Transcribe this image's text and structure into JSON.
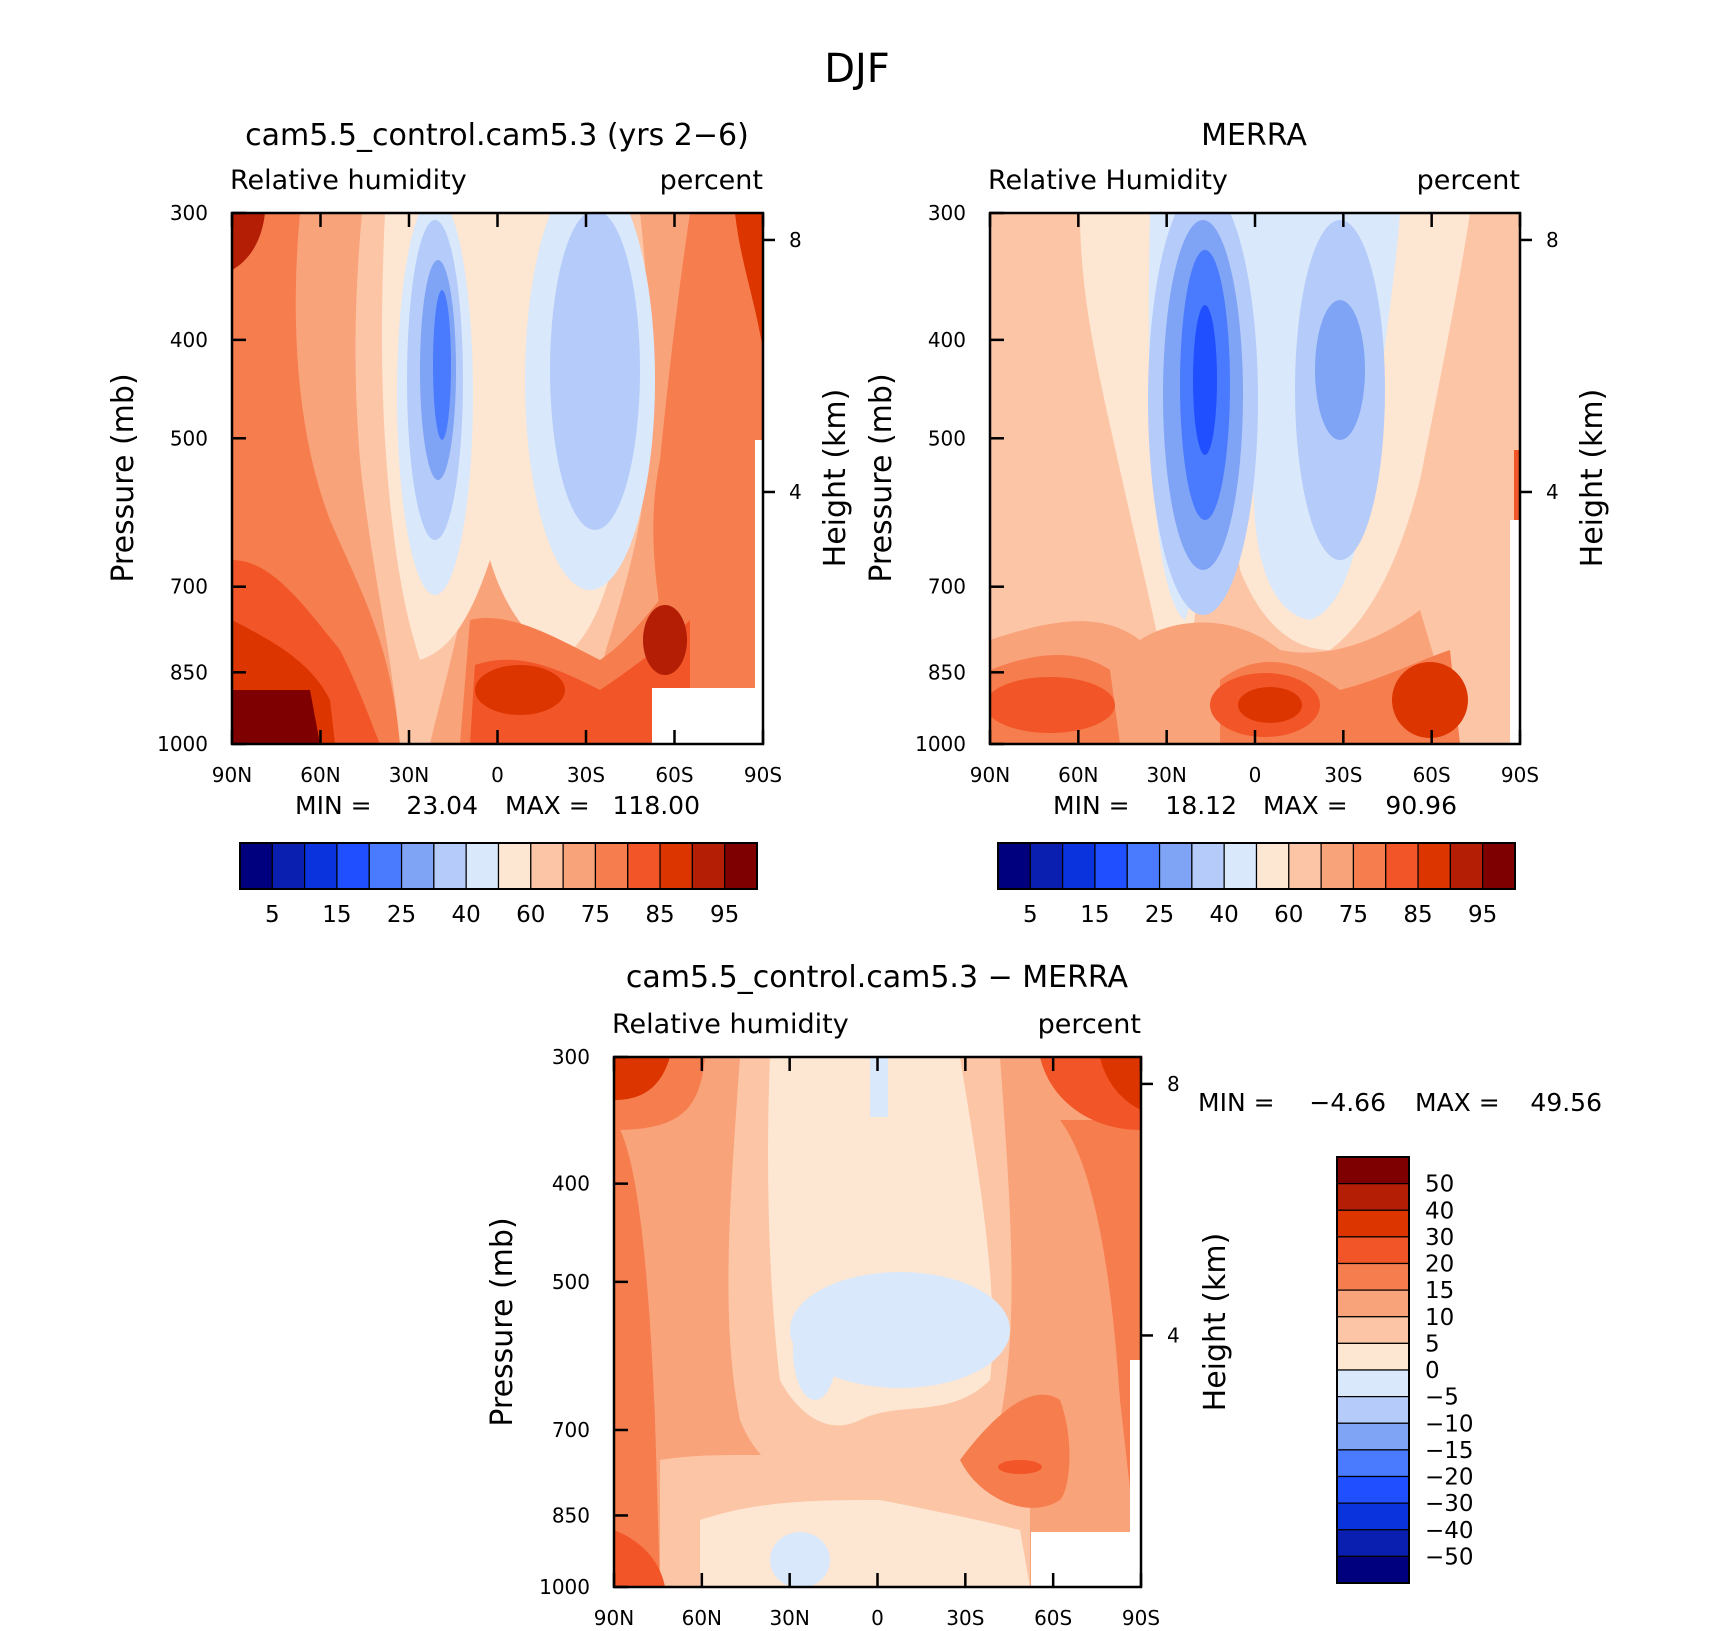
{
  "figure_title": "DJF",
  "chart_data": [
    {
      "type": "heatmap",
      "id": "model",
      "title": "cam5.5_control.cam5.3 (yrs 2−6)",
      "left_label": "Relative humidity",
      "right_label": "percent",
      "ylabel": "Pressure (mb)",
      "ylabel_right": "Height (km)",
      "x_ticks": [
        "90N",
        "60N",
        "30N",
        "0",
        "30S",
        "60S",
        "90S"
      ],
      "y_ticks": [
        "300",
        "400",
        "500",
        "700",
        "850",
        "1000"
      ],
      "y_ticks_right": [
        "8",
        "4"
      ],
      "stats": {
        "min_label": "MIN =",
        "min": "23.04",
        "max_label": "MAX =",
        "max": "118.00"
      },
      "colorbar": {
        "orientation": "horizontal",
        "levels": [
          "5",
          "15",
          "25",
          "40",
          "60",
          "75",
          "85",
          "95"
        ]
      }
    },
    {
      "type": "heatmap",
      "id": "obs",
      "title": "MERRA",
      "left_label": "Relative Humidity",
      "right_label": "percent",
      "ylabel": "Pressure (mb)",
      "ylabel_right": "Height (km)",
      "x_ticks": [
        "90N",
        "60N",
        "30N",
        "0",
        "30S",
        "60S",
        "90S"
      ],
      "y_ticks": [
        "300",
        "400",
        "500",
        "700",
        "850",
        "1000"
      ],
      "y_ticks_right": [
        "8",
        "4"
      ],
      "stats": {
        "min_label": "MIN =",
        "min": "18.12",
        "max_label": "MAX =",
        "max": "90.96"
      },
      "colorbar": {
        "orientation": "horizontal",
        "levels": [
          "5",
          "15",
          "25",
          "40",
          "60",
          "75",
          "85",
          "95"
        ]
      }
    },
    {
      "type": "heatmap",
      "id": "diff",
      "title": "cam5.5_control.cam5.3 − MERRA",
      "left_label": "Relative humidity",
      "right_label": "percent",
      "ylabel": "Pressure (mb)",
      "ylabel_right": "Height (km)",
      "x_ticks": [
        "90N",
        "60N",
        "30N",
        "0",
        "30S",
        "60S",
        "90S"
      ],
      "y_ticks": [
        "300",
        "400",
        "500",
        "700",
        "850",
        "1000"
      ],
      "y_ticks_right": [
        "8",
        "4"
      ],
      "stats": {
        "min_label": "MIN =",
        "min": "−4.66",
        "max_label": "MAX =",
        "max": "49.56"
      },
      "colorbar": {
        "orientation": "vertical",
        "levels": [
          "50",
          "40",
          "30",
          "20",
          "15",
          "10",
          "5",
          "0",
          "−5",
          "−10",
          "−15",
          "−20",
          "−30",
          "−40",
          "−50"
        ]
      }
    }
  ],
  "colors": {
    "scale": [
      "#00007f",
      "#0a1fb0",
      "#0a33dd",
      "#1f4fff",
      "#4a7bff",
      "#7fa3f5",
      "#b5cbfa",
      "#d9e8fb",
      "#fde6d2",
      "#fcc6a6",
      "#f9a37b",
      "#f67d4e",
      "#f25527",
      "#dc3500",
      "#b31e04",
      "#7f0000"
    ]
  }
}
